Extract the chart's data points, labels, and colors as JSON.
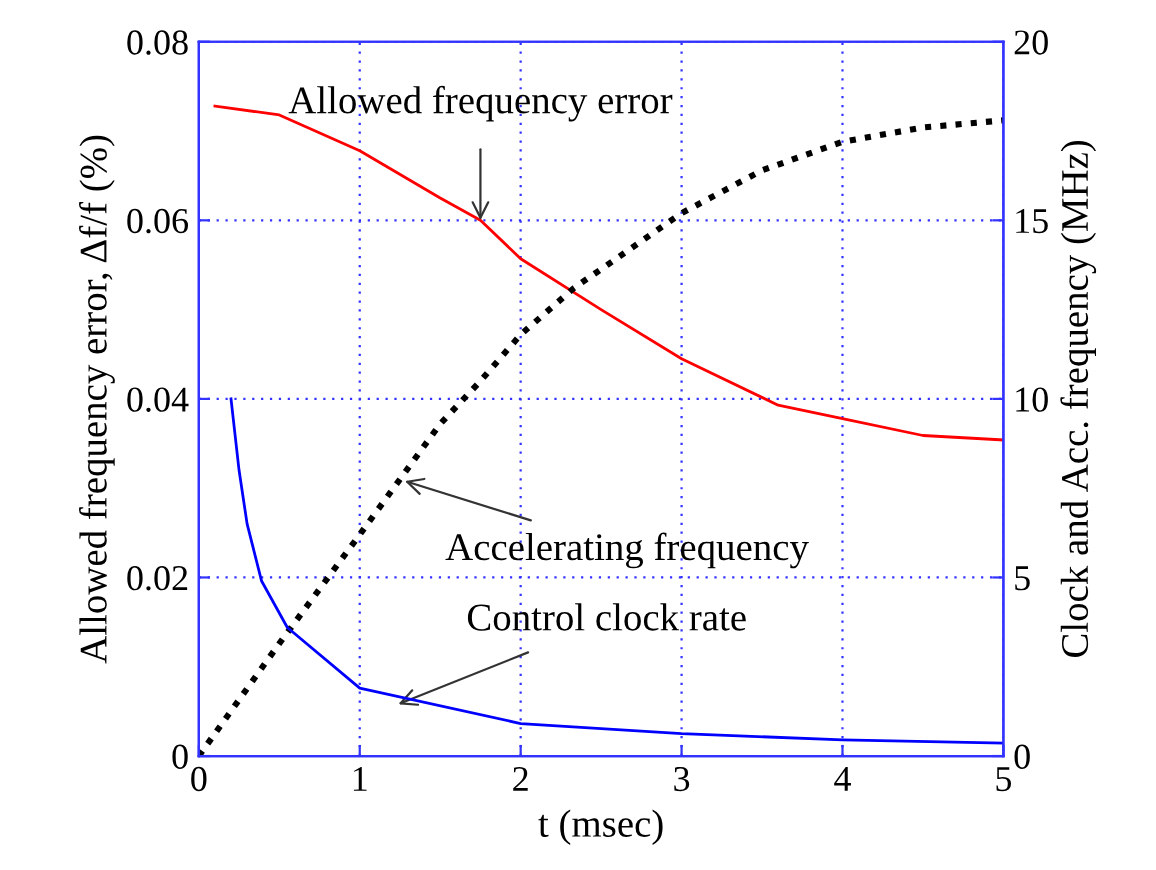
{
  "chart_data": {
    "type": "line",
    "xlabel": "t (msec)",
    "ylabel": "Allowed frequency error, Δf/f (%)",
    "y2label": "Clock and Acc. frequency (MHz)",
    "xlim": [
      0,
      5
    ],
    "xticks": [
      0,
      1,
      2,
      3,
      4,
      5
    ],
    "ylim": [
      0,
      0.08
    ],
    "yticks": [
      0,
      0.02,
      0.04,
      0.06,
      0.08
    ],
    "y2lim": [
      0,
      20
    ],
    "y2ticks": [
      0,
      5,
      10,
      15,
      20
    ],
    "grid": true,
    "line_style": "solid",
    "series": [
      {
        "color": "#ff0000",
        "x": [
          0.1,
          0.5,
          1,
          1.5,
          1.75,
          2,
          2.5,
          3,
          3.6,
          4,
          4.5,
          5
        ],
        "values": [
          0.0728,
          0.0718,
          0.0678,
          0.0625,
          0.06,
          0.0557,
          0.05,
          0.0445,
          0.0393,
          0.0378,
          0.0359,
          0.0354
        ]
      },
      {
        "color": "#000000",
        "axis": "y2",
        "line_style": "dotted",
        "x": [
          0,
          0.5,
          1,
          1.5,
          1.75,
          2,
          2.33,
          3,
          3.5,
          4,
          4.5,
          5
        ],
        "values": [
          0,
          3.15,
          6.2,
          9.3,
          10.5,
          11.8,
          13.1,
          15.2,
          16.4,
          17.2,
          17.6,
          17.8
        ]
      },
      {
        "color": "#0000ff",
        "axis": "y2",
        "x": [
          0.2,
          0.25,
          0.3,
          0.39,
          0.55,
          1,
          2,
          3,
          4,
          5
        ],
        "values": [
          10,
          8,
          6.5,
          4.9,
          3.6,
          1.9,
          0.91,
          0.63,
          0.45,
          0.36
        ]
      }
    ],
    "annotations": [
      {
        "text": "Allowed frequency error",
        "x": 1.75,
        "y": 0.06
      },
      {
        "text": "Accelerating frequency",
        "x": 1.28,
        "y": 0.0308
      },
      {
        "text": "Control clock rate",
        "x": 1.24,
        "y": 0.0058
      }
    ]
  }
}
